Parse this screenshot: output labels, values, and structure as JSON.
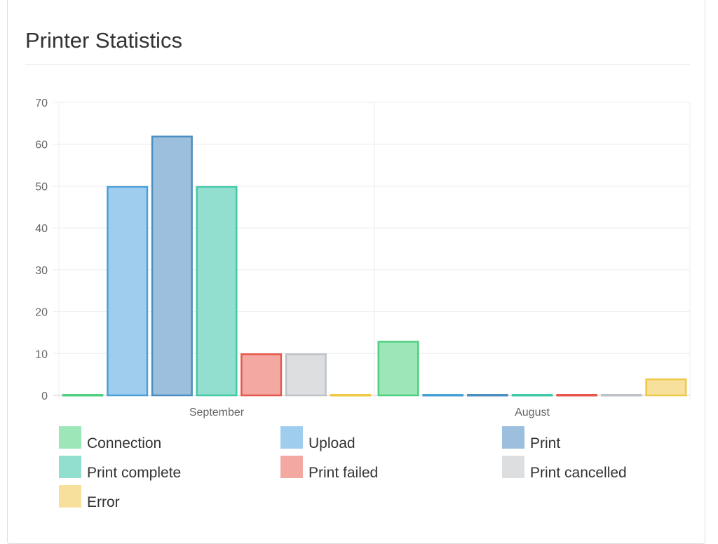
{
  "panel": {
    "title": "Printer Statistics"
  },
  "chart_data": {
    "type": "bar",
    "categories": [
      "September",
      "August"
    ],
    "yticks": [
      0,
      10,
      20,
      30,
      40,
      50,
      60,
      70
    ],
    "ylim": [
      0,
      70
    ],
    "grid": true,
    "legend_position": "bottom",
    "series": [
      {
        "name": "Connection",
        "values": [
          0,
          13
        ],
        "fill": "#9ce6b8",
        "stroke": "#4fcf7f"
      },
      {
        "name": "Upload",
        "values": [
          50,
          0
        ],
        "fill": "#9fcdee",
        "stroke": "#4a9fd6"
      },
      {
        "name": "Print",
        "values": [
          62,
          0
        ],
        "fill": "#9bbfdc",
        "stroke": "#4d8ec0"
      },
      {
        "name": "Print complete",
        "values": [
          50,
          0
        ],
        "fill": "#92dfcf",
        "stroke": "#40c9a6"
      },
      {
        "name": "Print failed",
        "values": [
          10,
          0
        ],
        "fill": "#f3a8a2",
        "stroke": "#e7574c"
      },
      {
        "name": "Print cancelled",
        "values": [
          10,
          0
        ],
        "fill": "#dcdee0",
        "stroke": "#bec2c6"
      },
      {
        "name": "Error",
        "values": [
          0,
          4
        ],
        "fill": "#f6e09c",
        "stroke": "#efc846"
      }
    ]
  }
}
